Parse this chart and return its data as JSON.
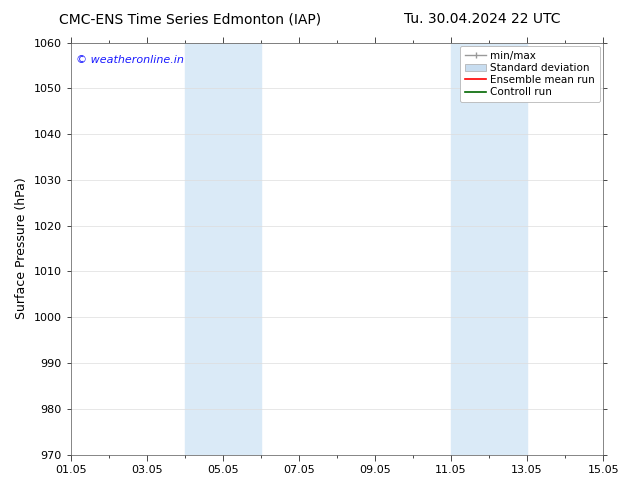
{
  "title_left": "CMC-ENS Time Series Edmonton (IAP)",
  "title_right": "Tu. 30.04.2024 22 UTC",
  "ylabel": "Surface Pressure (hPa)",
  "ylim": [
    970,
    1060
  ],
  "yticks": [
    970,
    980,
    990,
    1000,
    1010,
    1020,
    1030,
    1040,
    1050,
    1060
  ],
  "xlim_start": 0,
  "xlim_end": 14,
  "xtick_labels": [
    "01.05",
    "03.05",
    "05.05",
    "07.05",
    "09.05",
    "11.05",
    "13.05",
    "15.05"
  ],
  "xtick_positions": [
    0,
    2,
    4,
    6,
    8,
    10,
    12,
    14
  ],
  "shaded_bands": [
    {
      "xmin": 3.0,
      "xmax": 5.0,
      "color": "#daeaf7"
    },
    {
      "xmin": 10.0,
      "xmax": 12.0,
      "color": "#daeaf7"
    }
  ],
  "watermark": "© weatheronline.in",
  "watermark_color": "#1a1aff",
  "background_color": "#ffffff",
  "plot_bg_color": "#ffffff",
  "grid_color": "#dddddd",
  "legend_items": [
    {
      "label": "min/max"
    },
    {
      "label": "Standard deviation"
    },
    {
      "label": "Ensemble mean run"
    },
    {
      "label": "Controll run"
    }
  ],
  "title_fontsize": 10,
  "axis_label_fontsize": 9,
  "tick_fontsize": 8,
  "legend_fontsize": 7.5
}
